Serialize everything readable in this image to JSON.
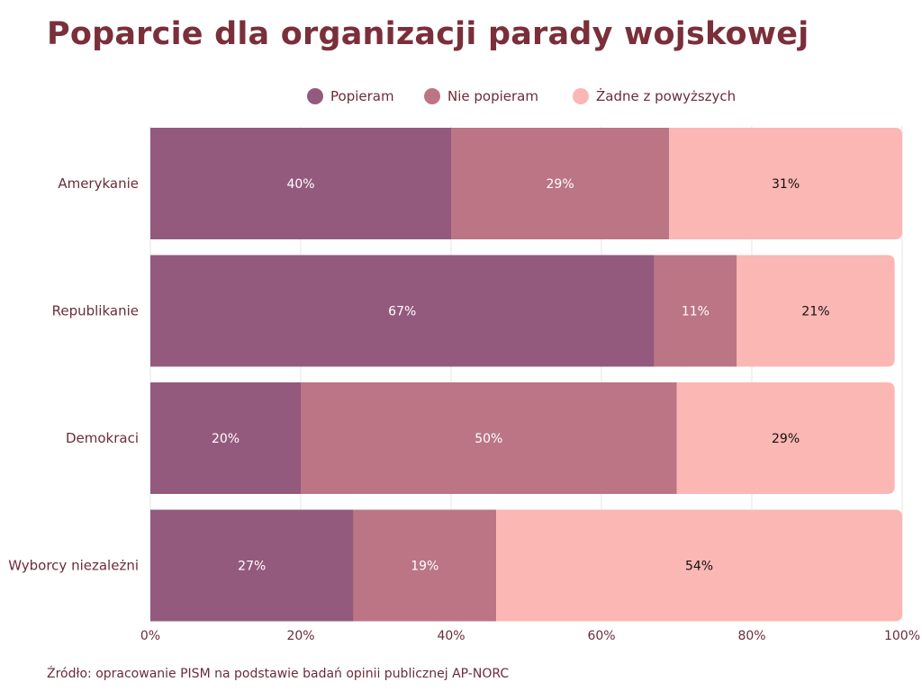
{
  "title": "Poparcie dla organizacji parady wojskowej",
  "source": "Źródło: opracowanie PISM na podstawie badań opinii publicznej AP-NORC",
  "legend": [
    {
      "label": "Popieram",
      "color": "#935a7d"
    },
    {
      "label": "Nie popieram",
      "color": "#bb7585"
    },
    {
      "label": "Żadne z powyższych",
      "color": "#fbb7b3"
    }
  ],
  "chart_data": {
    "type": "bar",
    "orientation": "horizontal",
    "stacked": true,
    "title": "Poparcie dla organizacji parady wojskowej",
    "categories": [
      "Amerykanie",
      "Republikanie",
      "Demokraci",
      "Wyborcy niezależni"
    ],
    "series": [
      {
        "name": "Popieram",
        "values": [
          40,
          67,
          20,
          27
        ],
        "color": "#935a7d",
        "label_color": "#ffffff"
      },
      {
        "name": "Nie popieram",
        "values": [
          29,
          11,
          50,
          19
        ],
        "color": "#bb7585",
        "label_color": "#ffffff"
      },
      {
        "name": "Żadne z powyższych",
        "values": [
          31,
          21,
          29,
          54
        ],
        "color": "#fbb7b3",
        "label_color": "#111111"
      }
    ],
    "x_ticks": [
      0,
      20,
      40,
      60,
      80,
      100
    ],
    "x_tick_labels": [
      "0%",
      "20%",
      "40%",
      "60%",
      "80%",
      "100%"
    ],
    "xlim": [
      0,
      100
    ],
    "value_suffix": "%",
    "xlabel": "",
    "ylabel": "",
    "grid": true,
    "legend_position": "top"
  }
}
